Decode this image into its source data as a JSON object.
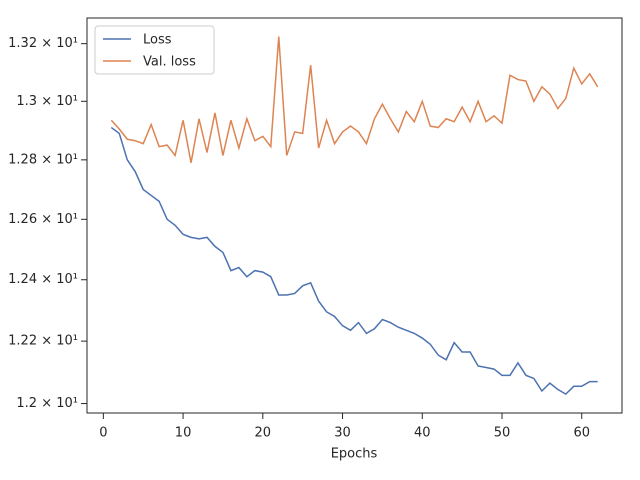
{
  "chart_data": {
    "type": "line",
    "x_label": "Epochs",
    "x": [
      1,
      2,
      3,
      4,
      5,
      6,
      7,
      8,
      9,
      10,
      11,
      12,
      13,
      14,
      15,
      16,
      17,
      18,
      19,
      20,
      21,
      22,
      23,
      24,
      25,
      26,
      27,
      28,
      29,
      30,
      31,
      32,
      33,
      34,
      35,
      36,
      37,
      38,
      39,
      40,
      41,
      42,
      43,
      44,
      45,
      46,
      47,
      48,
      49,
      50,
      51,
      52,
      53,
      54,
      55,
      56,
      57,
      58,
      59,
      60,
      61,
      62
    ],
    "series": [
      {
        "name": "Loss",
        "color": "#4c72b0",
        "values": [
          12.91,
          12.89,
          12.8,
          12.76,
          12.7,
          12.68,
          12.66,
          12.6,
          12.58,
          12.55,
          12.54,
          12.535,
          12.54,
          12.51,
          12.49,
          12.43,
          12.44,
          12.41,
          12.43,
          12.425,
          12.41,
          12.35,
          12.35,
          12.355,
          12.38,
          12.39,
          12.33,
          12.295,
          12.28,
          12.25,
          12.235,
          12.26,
          12.225,
          12.24,
          12.27,
          12.26,
          12.245,
          12.235,
          12.225,
          12.21,
          12.19,
          12.155,
          12.14,
          12.195,
          12.165,
          12.165,
          12.12,
          12.115,
          12.11,
          12.09,
          12.09,
          12.13,
          12.09,
          12.08,
          12.04,
          12.065,
          12.045,
          12.03,
          12.055,
          12.055,
          12.07,
          12.07
        ]
      },
      {
        "name": "Val. loss",
        "color": "#dd8452",
        "values": [
          12.935,
          12.905,
          12.87,
          12.865,
          12.855,
          12.92,
          12.845,
          12.85,
          12.815,
          12.935,
          12.79,
          12.94,
          12.825,
          12.96,
          12.815,
          12.935,
          12.84,
          12.94,
          12.865,
          12.88,
          12.845,
          13.225,
          12.815,
          12.895,
          12.89,
          13.125,
          12.84,
          12.935,
          12.855,
          12.895,
          12.915,
          12.895,
          12.855,
          12.94,
          12.99,
          12.94,
          12.895,
          12.965,
          12.93,
          13.0,
          12.915,
          12.91,
          12.94,
          12.93,
          12.98,
          12.93,
          13.0,
          12.93,
          12.95,
          12.925,
          13.09,
          13.075,
          13.07,
          13.0,
          13.05,
          13.025,
          12.975,
          13.01,
          13.115,
          13.06,
          13.095,
          13.05
        ]
      }
    ],
    "xlim": [
      -2.05,
      65.05
    ],
    "xticks": [
      0,
      10,
      20,
      30,
      40,
      50,
      60
    ],
    "ylim": [
      11.97,
      13.29
    ],
    "y_scale": "log",
    "yticks": [
      {
        "value": 12.0,
        "label": "1.2 × 10¹"
      },
      {
        "value": 12.2,
        "label": "1.22 × 10¹"
      },
      {
        "value": 12.4,
        "label": "1.24 × 10¹"
      },
      {
        "value": 12.6,
        "label": "1.26 × 10¹"
      },
      {
        "value": 12.8,
        "label": "1.28 × 10¹"
      },
      {
        "value": 13.0,
        "label": "1.3 × 10¹"
      },
      {
        "value": 13.2,
        "label": "1.32 × 10¹"
      }
    ],
    "grid": false,
    "legend": "upper left"
  }
}
